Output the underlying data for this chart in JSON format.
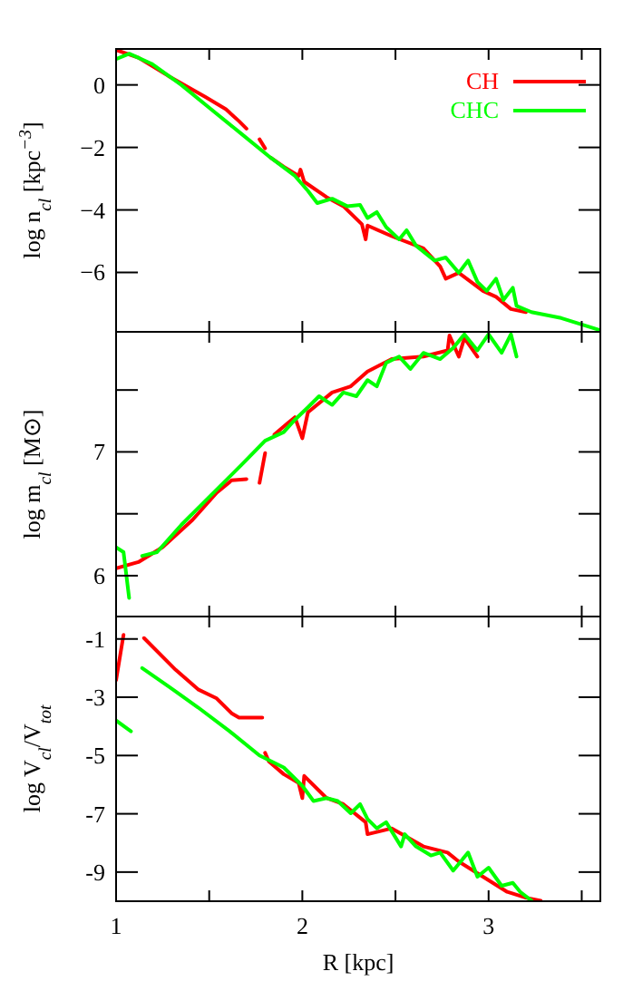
{
  "chart_data": [
    {
      "type": "line",
      "ylabel": "log n$_{cl}$ [kpc$^{−3}$]",
      "xlim": [
        1,
        3.6
      ],
      "xticks": [
        1,
        {
          "value": 1.5,
          "label": null
        },
        2,
        {
          "value": 2.5,
          "label": null
        },
        3,
        {
          "value": 3.5,
          "label": null
        }
      ],
      "ylim": [
        -7.9,
        1.15
      ],
      "yticks": [
        {
          "value": 0,
          "label": "0"
        },
        {
          "value": -2,
          "label": "−2"
        },
        {
          "value": -4,
          "label": "−4"
        },
        {
          "value": -6,
          "label": "−6"
        }
      ],
      "tick_labels": "y",
      "legend": "top right",
      "series": [
        {
          "name": "CH",
          "color": "#ff0000",
          "x": [
            1.0,
            1.12,
            1.28,
            1.48,
            1.59,
            1.66,
            1.7,
            1.735,
            1.77,
            1.8,
            1.815,
            1.83,
            1.9,
            1.98,
            1.99,
            2.01,
            2.13,
            2.22,
            2.32,
            2.34,
            2.35,
            2.48,
            2.65,
            2.74,
            2.77,
            2.84,
            2.97,
            3.04,
            3.12,
            3.2
          ],
          "values": [
            1.12,
            0.87,
            0.29,
            -0.39,
            -0.78,
            -1.16,
            -1.4,
            null,
            -1.74,
            -2.03,
            null,
            -2.33,
            -2.62,
            -2.91,
            -2.71,
            -3.1,
            -3.59,
            -3.88,
            -4.46,
            -4.94,
            -4.5,
            -4.84,
            -5.23,
            -5.81,
            -6.2,
            -6.01,
            -6.59,
            -6.78,
            -7.17,
            -7.27
          ]
        },
        {
          "name": "CHC",
          "color": "#00ff00",
          "x": [
            1.0,
            1.06,
            1.07,
            1.19,
            1.35,
            1.51,
            1.67,
            1.83,
            1.96,
            2.03,
            2.08,
            2.16,
            2.24,
            2.31,
            2.35,
            2.4,
            2.45,
            2.52,
            2.56,
            2.61,
            2.71,
            2.77,
            2.84,
            2.89,
            2.94,
            2.99,
            3.04,
            3.08,
            3.13,
            3.15,
            3.23,
            3.39,
            3.6
          ],
          "values": [
            0.83,
            0.97,
            1.0,
            0.68,
            0,
            -0.78,
            -1.55,
            -2.33,
            -2.91,
            -3.39,
            -3.78,
            -3.64,
            -3.88,
            -3.84,
            -4.26,
            -4.07,
            -4.55,
            -4.94,
            -4.65,
            -5.14,
            -5.62,
            -5.52,
            -6.01,
            -5.62,
            -6.3,
            -6.59,
            -6.2,
            -6.88,
            -6.49,
            -7.07,
            -7.27,
            -7.46,
            -7.85
          ]
        }
      ]
    },
    {
      "type": "line",
      "ylabel": "log m$_{cl}$ [M⊙]",
      "xlim": [
        1,
        3.6
      ],
      "xticks": [
        1,
        {
          "value": 1.5,
          "label": null
        },
        2,
        {
          "value": 2.5,
          "label": null
        },
        3,
        {
          "value": 3.5,
          "label": null
        }
      ],
      "ylim": [
        5.67,
        7.97
      ],
      "yticks": [
        6,
        {
          "value": 6.5,
          "label": null
        },
        7,
        {
          "value": 7.5,
          "label": null
        }
      ],
      "tick_labels": "y",
      "series": [
        {
          "color": "#ff0000",
          "x": [
            1.0,
            1.12,
            1.25,
            1.41,
            1.54,
            1.62,
            1.7,
            1.735,
            1.77,
            1.8,
            1.825,
            1.85,
            1.92,
            1.96,
            2.0,
            2.03,
            2.16,
            2.26,
            2.35,
            2.48,
            2.65,
            2.78,
            2.79,
            2.84,
            2.87,
            2.94
          ],
          "values": [
            6.06,
            6.11,
            6.23,
            6.45,
            6.67,
            6.77,
            6.78,
            null,
            6.75,
            6.99,
            null,
            7.14,
            7.23,
            7.28,
            7.11,
            7.32,
            7.48,
            7.53,
            7.65,
            7.75,
            7.77,
            7.82,
            7.94,
            7.77,
            7.92,
            7.77
          ]
        },
        {
          "color": "#00ff00",
          "x": [
            1.0,
            1.04,
            1.07,
            1.09,
            1.115,
            1.14,
            1.22,
            1.35,
            1.51,
            1.67,
            1.8,
            1.9,
            1.96,
            2.03,
            2.09,
            2.16,
            2.22,
            2.29,
            2.35,
            2.4,
            2.45,
            2.52,
            2.58,
            2.65,
            2.74,
            2.81,
            2.87,
            2.94,
            3.0,
            3.07,
            3.12,
            3.15
          ],
          "values": [
            6.23,
            6.19,
            5.82,
            null,
            null,
            6.16,
            6.19,
            6.41,
            6.65,
            6.89,
            7.09,
            7.16,
            7.26,
            7.36,
            7.45,
            7.38,
            7.48,
            7.45,
            7.58,
            7.53,
            7.72,
            7.77,
            7.67,
            7.8,
            7.75,
            7.84,
            7.95,
            7.82,
            7.95,
            7.8,
            7.95,
            7.77
          ]
        }
      ]
    },
    {
      "type": "line",
      "ylabel": "log V$_{cl}$/V$_{tot}$",
      "xlabel": "R [kpc]",
      "xlim": [
        1,
        3.6
      ],
      "xticks": [
        1,
        {
          "value": 1.5,
          "label": null
        },
        2,
        {
          "value": 2.5,
          "label": null
        },
        3,
        {
          "value": 3.5,
          "label": null
        }
      ],
      "ylim": [
        -10,
        -0.23
      ],
      "yticks": [
        {
          "value": -1,
          "label": "-1"
        },
        {
          "value": -3,
          "label": "-3"
        },
        {
          "value": -5,
          "label": "-5"
        },
        {
          "value": -7,
          "label": "-7"
        },
        {
          "value": -9,
          "label": "-9"
        }
      ],
      "series": [
        {
          "color": "#ff0000",
          "x": [
            1.0,
            1.04,
            1.1,
            1.15,
            1.32,
            1.44,
            1.54,
            1.62,
            1.66,
            1.7,
            1.785,
            1.79,
            1.8,
            1.82,
            1.9,
            1.98,
            2.0,
            2.01,
            2.13,
            2.22,
            2.34,
            2.35,
            2.48,
            2.65,
            2.78,
            2.84,
            2.97,
            3.1,
            3.2,
            3.28
          ],
          "values": [
            -2.41,
            -0.86,
            null,
            -0.97,
            -2.06,
            -2.73,
            -3.04,
            -3.55,
            -3.7,
            -3.7,
            -3.7,
            null,
            -4.91,
            -5.2,
            -5.64,
            -5.94,
            -6.46,
            -5.7,
            -6.46,
            -6.67,
            -7.29,
            -7.7,
            -7.5,
            -8.12,
            -8.33,
            -8.64,
            -9.16,
            -9.68,
            -9.88,
            -9.98
          ]
        },
        {
          "color": "#00ff00",
          "x": [
            1.0,
            1.08,
            1.11,
            1.14,
            1.28,
            1.44,
            1.61,
            1.77,
            1.9,
            2.0,
            2.06,
            2.13,
            2.19,
            2.26,
            2.31,
            2.35,
            2.4,
            2.45,
            2.53,
            2.55,
            2.61,
            2.69,
            2.74,
            2.81,
            2.89,
            2.94,
            3.0,
            3.07,
            3.13,
            3.17,
            3.23
          ],
          "values": [
            -3.8,
            -4.17,
            null,
            -2.0,
            -2.62,
            -3.35,
            -4.17,
            -5.0,
            -5.41,
            -6.04,
            -6.56,
            -6.46,
            -6.56,
            -6.98,
            -6.67,
            -7.18,
            -7.5,
            -7.29,
            -8.12,
            -7.7,
            -8.12,
            -8.43,
            -8.33,
            -8.95,
            -8.33,
            -9.16,
            -8.85,
            -9.47,
            -9.37,
            -9.68,
            -9.98
          ]
        }
      ]
    }
  ]
}
